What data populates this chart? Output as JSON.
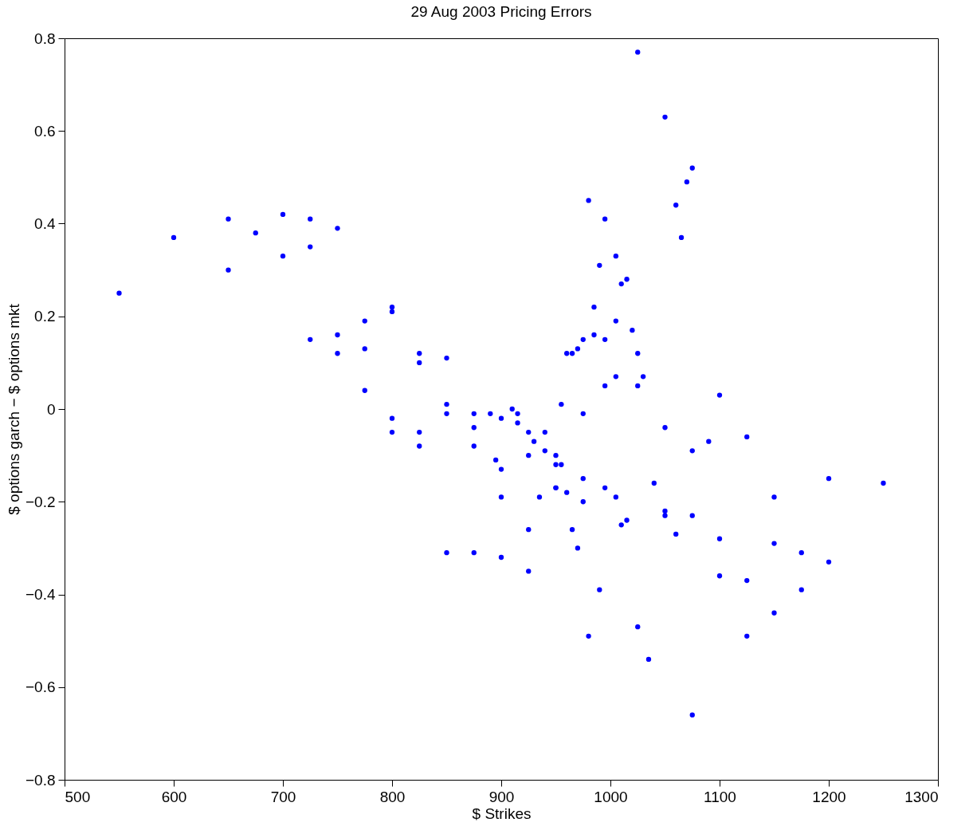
{
  "chart_data": {
    "type": "scatter",
    "title": "29 Aug 2003 Pricing Errors",
    "xlabel": "$ Strikes",
    "ylabel": "$ options garch − $ options mkt",
    "x": [
      550,
      600,
      650,
      650,
      675,
      700,
      700,
      725,
      725,
      725,
      750,
      750,
      750,
      775,
      775,
      775,
      800,
      800,
      800,
      800,
      825,
      825,
      825,
      825,
      850,
      850,
      850,
      850,
      875,
      875,
      875,
      875,
      890,
      895,
      900,
      900,
      900,
      900,
      910,
      915,
      915,
      925,
      925,
      925,
      925,
      930,
      935,
      940,
      940,
      950,
      950,
      950,
      950,
      955,
      955,
      960,
      960,
      965,
      965,
      970,
      970,
      975,
      975,
      975,
      975,
      980,
      980,
      985,
      985,
      990,
      990,
      995,
      995,
      995,
      995,
      1005,
      1005,
      1005,
      1005,
      1010,
      1010,
      1015,
      1015,
      1020,
      1025,
      1025,
      1025,
      1025,
      1030,
      1035,
      1040,
      1050,
      1050,
      1050,
      1050,
      1060,
      1060,
      1065,
      1070,
      1075,
      1075,
      1075,
      1075,
      1090,
      1100,
      1100,
      1100,
      1125,
      1125,
      1125,
      1150,
      1150,
      1150,
      1175,
      1175,
      1200,
      1200,
      1250
    ],
    "values": [
      0.25,
      0.37,
      0.41,
      0.3,
      0.38,
      0.42,
      0.33,
      0.41,
      0.35,
      0.15,
      0.39,
      0.16,
      0.12,
      0.19,
      0.13,
      0.04,
      0.22,
      0.21,
      -0.02,
      -0.05,
      0.12,
      0.1,
      -0.05,
      -0.08,
      0.11,
      0.01,
      -0.01,
      -0.31,
      -0.01,
      -0.04,
      -0.08,
      -0.31,
      -0.01,
      -0.11,
      -0.02,
      -0.13,
      -0.19,
      -0.32,
      0.0,
      -0.01,
      -0.03,
      -0.05,
      -0.1,
      -0.26,
      -0.35,
      -0.07,
      -0.19,
      -0.05,
      -0.09,
      -0.1,
      -0.12,
      -0.17,
      -0.17,
      -0.12,
      0.01,
      0.12,
      -0.18,
      0.12,
      -0.26,
      0.13,
      -0.3,
      0.15,
      -0.01,
      -0.15,
      -0.2,
      0.45,
      -0.49,
      0.22,
      0.16,
      0.31,
      -0.39,
      0.41,
      0.15,
      0.05,
      -0.17,
      0.33,
      0.19,
      0.07,
      -0.19,
      0.27,
      -0.25,
      0.28,
      -0.24,
      0.17,
      0.77,
      0.12,
      0.05,
      -0.47,
      0.07,
      -0.54,
      -0.16,
      0.63,
      -0.04,
      -0.22,
      -0.23,
      0.44,
      -0.27,
      0.37,
      0.49,
      0.52,
      -0.09,
      -0.23,
      -0.66,
      -0.07,
      0.03,
      -0.28,
      -0.36,
      -0.06,
      -0.37,
      -0.49,
      -0.19,
      -0.29,
      -0.44,
      -0.31,
      -0.39,
      -0.15,
      -0.33,
      -0.16
    ],
    "color": "#0000ff",
    "marker": "circle",
    "xlim": [
      500,
      1300
    ],
    "xticks": [
      500,
      600,
      700,
      800,
      900,
      1000,
      1100,
      1200,
      1300
    ],
    "ylim": [
      -0.8,
      0.8
    ],
    "yticks": [
      -0.8,
      -0.6,
      -0.4,
      -0.2,
      0,
      0.2,
      0.4,
      0.6,
      0.8
    ],
    "grid": false
  }
}
